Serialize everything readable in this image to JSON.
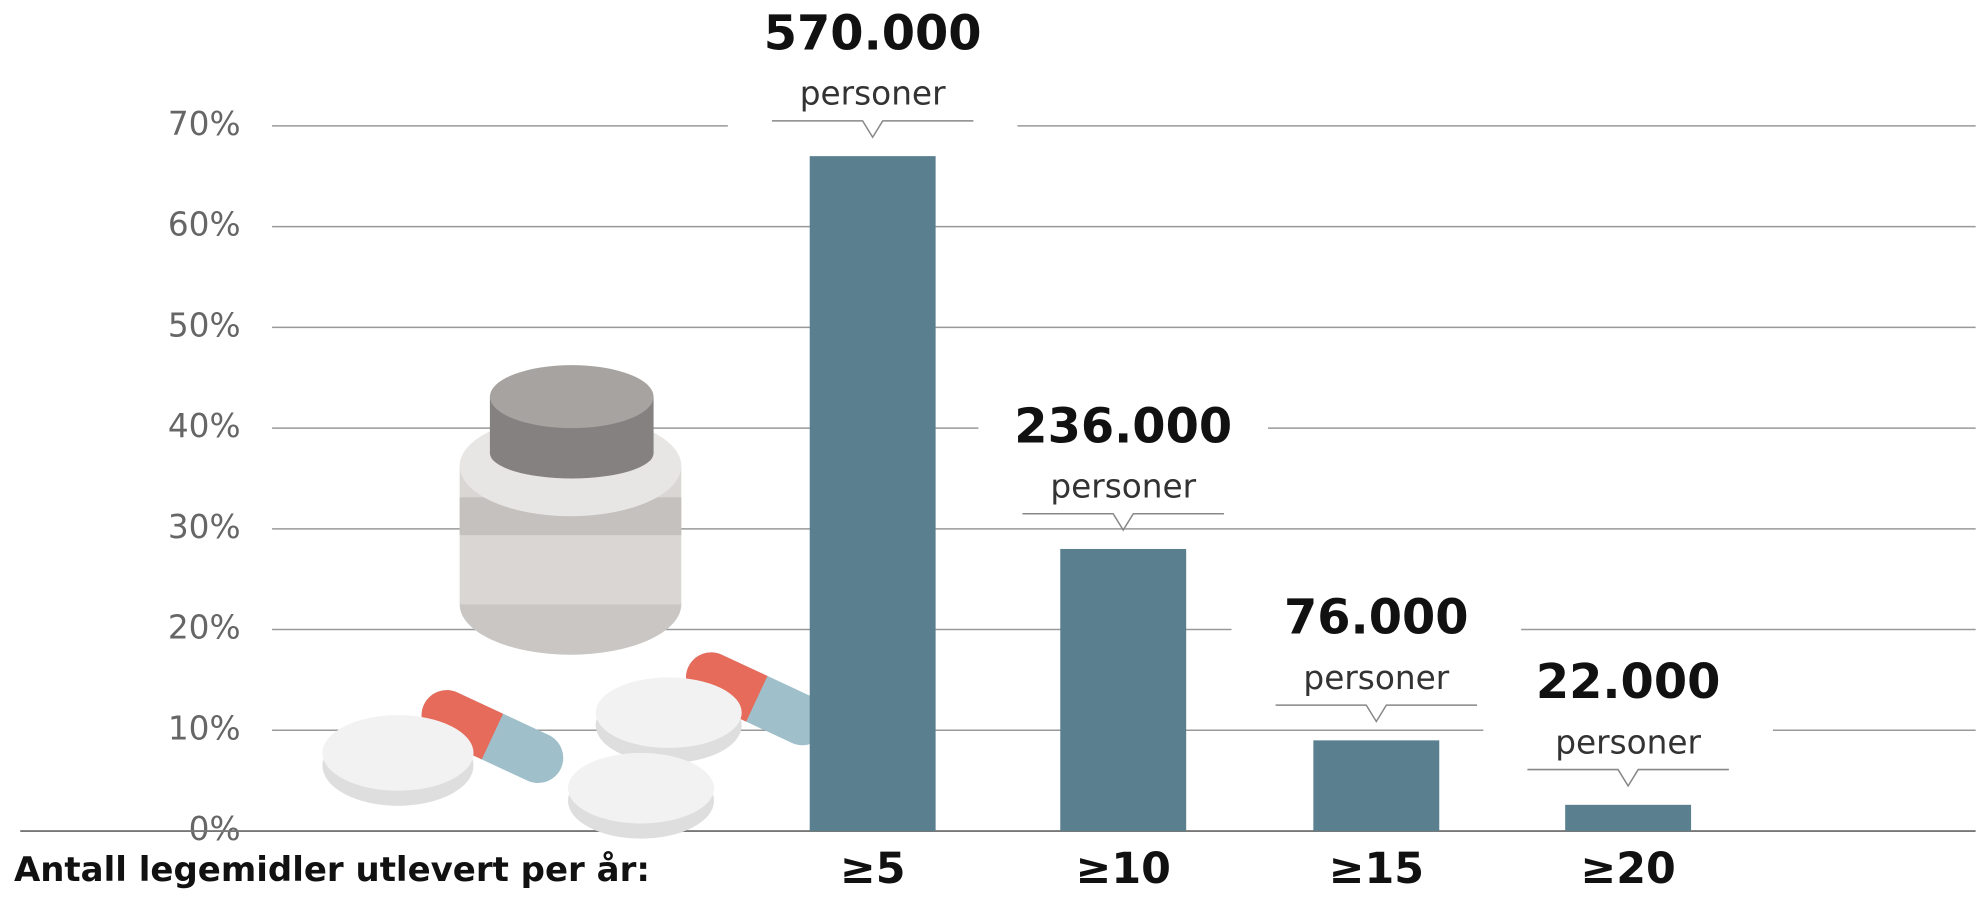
{
  "chart_data": {
    "type": "bar",
    "xlabel": "Antall legemidler utlevert per år:",
    "categories": [
      "≥5",
      "≥10",
      "≥15",
      "≥20"
    ],
    "values": [
      67,
      28,
      9,
      2.6
    ],
    "color": "#5a808f",
    "annotations": [
      {
        "count": "570.000",
        "unit": "personer"
      },
      {
        "count": "236.000",
        "unit": "personer"
      },
      {
        "count": "76.000",
        "unit": "personer"
      },
      {
        "count": "22.000",
        "unit": "personer"
      }
    ],
    "ylim": [
      0,
      70
    ],
    "yticks": [
      {
        "value": 0,
        "label": "0%"
      },
      {
        "value": 10,
        "label": "10%"
      },
      {
        "value": 20,
        "label": "20%"
      },
      {
        "value": 30,
        "label": "30%"
      },
      {
        "value": 40,
        "label": "40%"
      },
      {
        "value": 50,
        "label": "50%"
      },
      {
        "value": 60,
        "label": "60%"
      },
      {
        "value": 70,
        "label": "70%"
      }
    ],
    "grid": true
  }
}
